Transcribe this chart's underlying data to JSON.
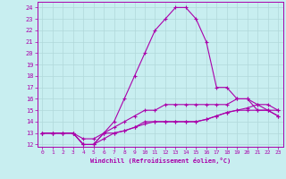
{
  "xlabel": "Windchill (Refroidissement éolien,°C)",
  "background_color": "#c8eef0",
  "grid_color": "#b0d8da",
  "line_color": "#aa00aa",
  "x_ticks": [
    0,
    1,
    2,
    3,
    4,
    5,
    6,
    7,
    8,
    9,
    10,
    11,
    12,
    13,
    14,
    15,
    16,
    17,
    18,
    19,
    20,
    21,
    22,
    23
  ],
  "y_ticks": [
    12,
    13,
    14,
    15,
    16,
    17,
    18,
    19,
    20,
    21,
    22,
    23,
    24
  ],
  "ylim": [
    11.8,
    24.5
  ],
  "xlim": [
    -0.5,
    23.5
  ],
  "line1": [
    13,
    13,
    13,
    13,
    12,
    12,
    13,
    14,
    16,
    18,
    20,
    22,
    23,
    24,
    24,
    23,
    21,
    17,
    17,
    16,
    16,
    15,
    15,
    15
  ],
  "line2": [
    13,
    13,
    13,
    13,
    12.5,
    12.5,
    13,
    13.5,
    14,
    14.5,
    15,
    15,
    15.5,
    15.5,
    15.5,
    15.5,
    15.5,
    15.5,
    15.5,
    16,
    16,
    15.5,
    15.5,
    15
  ],
  "line3": [
    13,
    13,
    13,
    13,
    12,
    12,
    13,
    13,
    13.2,
    13.5,
    14,
    14,
    14,
    14,
    14,
    14,
    14.2,
    14.5,
    14.8,
    15,
    15,
    15,
    15,
    14.5
  ],
  "line4": [
    13,
    13,
    13,
    13,
    12,
    12,
    12.5,
    13,
    13.2,
    13.5,
    13.8,
    14,
    14,
    14,
    14,
    14,
    14.2,
    14.5,
    14.8,
    15,
    15.2,
    15.5,
    15,
    14.5
  ]
}
